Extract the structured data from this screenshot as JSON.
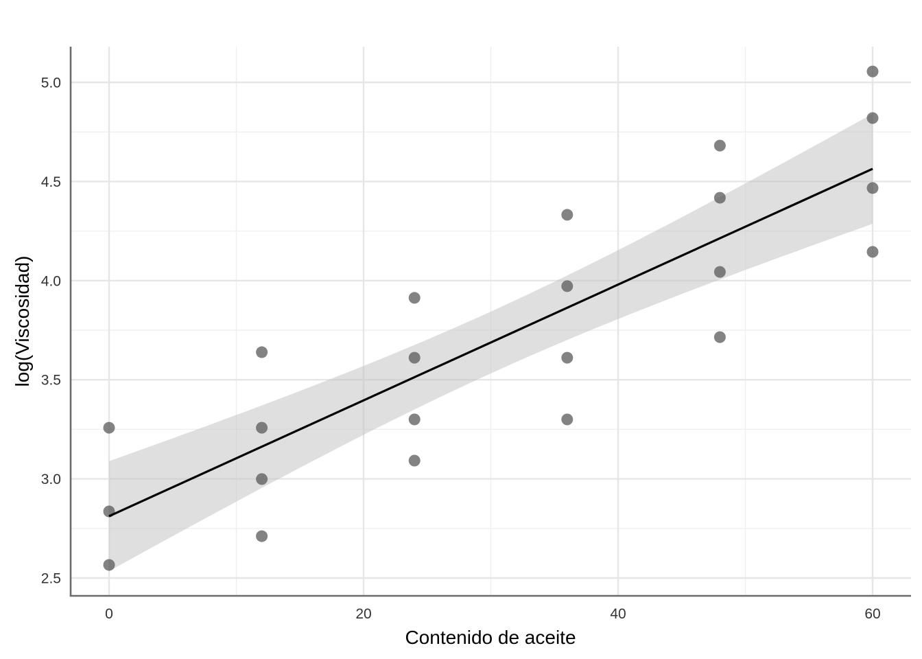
{
  "chart_data": {
    "type": "scatter",
    "title": "",
    "xlabel": "Contenido de aceite",
    "ylabel": "log(Viscosidad)",
    "xlim": [
      -3,
      63
    ],
    "ylim": [
      2.41,
      5.18
    ],
    "x_ticks": [
      0,
      20,
      40,
      60
    ],
    "x_tick_labels": [
      "0",
      "20",
      "40",
      "60"
    ],
    "y_ticks": [
      2.5,
      3.0,
      3.5,
      4.0,
      4.5,
      5.0
    ],
    "y_tick_labels": [
      "2.5",
      "3.0",
      "3.5",
      "4.0",
      "4.5",
      "5.0"
    ],
    "grid": true,
    "legend": "none",
    "points": {
      "x": [
        0,
        0,
        0,
        12,
        12,
        12,
        12,
        24,
        24,
        24,
        24,
        36,
        36,
        36,
        36,
        48,
        48,
        48,
        48,
        60,
        60,
        60,
        60
      ],
      "y": [
        3.258,
        2.836,
        2.566,
        3.639,
        3.258,
        2.999,
        2.711,
        3.913,
        3.611,
        3.3,
        3.092,
        4.332,
        3.972,
        3.611,
        3.3,
        4.681,
        4.418,
        4.044,
        3.715,
        5.055,
        4.82,
        4.467,
        4.145
      ]
    },
    "fit": {
      "method": "lm",
      "intercept": 2.812,
      "slope": 0.0292,
      "x_range": [
        0,
        60
      ],
      "ci_center_x": 30,
      "ci_halfwidth_center": 0.156,
      "ci_halfwidth_scale": 20.4,
      "ci_level": 0.95
    }
  },
  "colors": {
    "points": "#5a5a5a",
    "fit_line": "#000000",
    "ci_band": "#bfbfbf",
    "grid_major": "#e6e6e6",
    "grid_minor": "#efefef",
    "axis": "#6b6b6b"
  }
}
